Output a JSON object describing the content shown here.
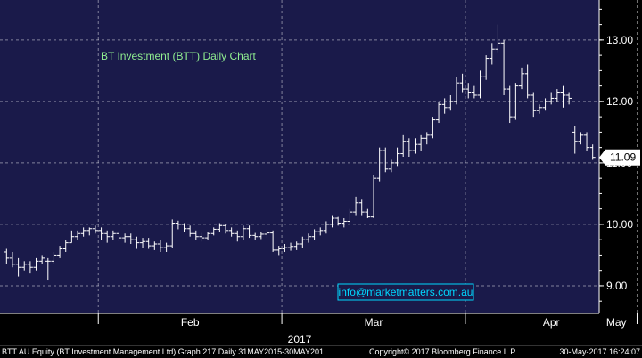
{
  "footer": {
    "left": "BTT AU Equity (BT Investment Management Ltd) Graph 217  Daily 31MAY2015-30MAY201",
    "middle": "Copyright© 2017 Bloomberg Finance L.P.",
    "right": "30-May-2017 16:24:07"
  },
  "colors": {
    "plot_bg": "#1a1a4a",
    "grid": "#ffffff",
    "bars": "#ffffff",
    "title": "#90ee90",
    "watermark": "#00d8ff"
  },
  "chart_data": {
    "type": "ohlc",
    "title": "BT Investment (BTT) Daily Chart",
    "watermark": "info@marketmatters.com.au",
    "year_label": "2017",
    "x_tick_labels": [
      "Feb",
      "Mar",
      "Apr",
      "May"
    ],
    "y_ticks": [
      9.0,
      10.0,
      11.0,
      12.0,
      13.0
    ],
    "y_tick_labels": [
      "9.00",
      "10.00",
      "11.00",
      "12.00",
      "13.00"
    ],
    "ylim": [
      8.55,
      13.65
    ],
    "last_price": 11.09,
    "last_price_label": "11.09",
    "grid": true,
    "month_start_index": {
      "Feb": 16,
      "Mar": 47,
      "Apr": 78,
      "May": 107
    },
    "bars": [
      [
        9.55,
        9.6,
        9.35,
        9.45
      ],
      [
        9.45,
        9.55,
        9.3,
        9.35
      ],
      [
        9.35,
        9.45,
        9.15,
        9.3
      ],
      [
        9.3,
        9.4,
        9.25,
        9.35
      ],
      [
        9.35,
        9.4,
        9.2,
        9.3
      ],
      [
        9.3,
        9.45,
        9.25,
        9.4
      ],
      [
        9.4,
        9.5,
        9.35,
        9.45
      ],
      [
        9.4,
        9.45,
        9.1,
        9.4
      ],
      [
        9.4,
        9.55,
        9.35,
        9.5
      ],
      [
        9.5,
        9.65,
        9.45,
        9.6
      ],
      [
        9.6,
        9.75,
        9.55,
        9.7
      ],
      [
        9.7,
        9.9,
        9.7,
        9.8
      ],
      [
        9.8,
        9.9,
        9.75,
        9.85
      ],
      [
        9.85,
        9.95,
        9.8,
        9.9
      ],
      [
        9.9,
        9.95,
        9.82,
        9.93
      ],
      [
        9.93,
        9.98,
        9.85,
        9.9
      ],
      [
        9.9,
        9.95,
        9.75,
        9.85
      ],
      [
        9.85,
        9.9,
        9.7,
        9.8
      ],
      [
        9.8,
        9.9,
        9.75,
        9.85
      ],
      [
        9.85,
        9.9,
        9.72,
        9.78
      ],
      [
        9.78,
        9.85,
        9.7,
        9.8
      ],
      [
        9.8,
        9.85,
        9.68,
        9.75
      ],
      [
        9.75,
        9.8,
        9.6,
        9.7
      ],
      [
        9.7,
        9.78,
        9.62,
        9.72
      ],
      [
        9.72,
        9.78,
        9.6,
        9.65
      ],
      [
        9.65,
        9.72,
        9.58,
        9.68
      ],
      [
        9.68,
        9.74,
        9.55,
        9.62
      ],
      [
        9.62,
        9.7,
        9.55,
        9.65
      ],
      [
        9.65,
        10.08,
        9.62,
        10.02
      ],
      [
        10.02,
        10.06,
        9.92,
        10.0
      ],
      [
        10.0,
        10.02,
        9.88,
        9.93
      ],
      [
        9.93,
        9.98,
        9.8,
        9.85
      ],
      [
        9.85,
        9.9,
        9.75,
        9.8
      ],
      [
        9.8,
        9.86,
        9.72,
        9.78
      ],
      [
        9.78,
        9.88,
        9.74,
        9.85
      ],
      [
        9.85,
        9.95,
        9.82,
        9.92
      ],
      [
        9.92,
        10.02,
        9.88,
        9.98
      ],
      [
        9.98,
        10.0,
        9.85,
        9.9
      ],
      [
        9.9,
        9.95,
        9.8,
        9.85
      ],
      [
        9.85,
        9.9,
        9.72,
        9.8
      ],
      [
        9.8,
        9.98,
        9.75,
        9.93
      ],
      [
        9.93,
        9.98,
        9.78,
        9.82
      ],
      [
        9.82,
        9.86,
        9.75,
        9.8
      ],
      [
        9.8,
        9.88,
        9.76,
        9.84
      ],
      [
        9.84,
        9.92,
        9.78,
        9.86
      ],
      [
        9.86,
        9.9,
        9.55,
        9.58
      ],
      [
        9.58,
        9.65,
        9.5,
        9.6
      ],
      [
        9.6,
        9.68,
        9.55,
        9.62
      ],
      [
        9.62,
        9.7,
        9.57,
        9.64
      ],
      [
        9.64,
        9.72,
        9.58,
        9.68
      ],
      [
        9.68,
        9.8,
        9.62,
        9.75
      ],
      [
        9.75,
        9.85,
        9.7,
        9.8
      ],
      [
        9.8,
        9.92,
        9.75,
        9.88
      ],
      [
        9.88,
        9.95,
        9.82,
        9.9
      ],
      [
        9.9,
        10.05,
        9.85,
        10.0
      ],
      [
        10.0,
        10.15,
        9.95,
        10.1
      ],
      [
        10.1,
        10.12,
        9.98,
        10.02
      ],
      [
        10.02,
        10.1,
        9.95,
        10.05
      ],
      [
        10.05,
        10.25,
        10.0,
        10.2
      ],
      [
        10.2,
        10.45,
        10.15,
        10.35
      ],
      [
        10.35,
        10.4,
        10.15,
        10.2
      ],
      [
        10.2,
        10.25,
        10.1,
        10.12
      ],
      [
        10.12,
        10.8,
        10.1,
        10.75
      ],
      [
        10.75,
        11.25,
        10.7,
        11.2
      ],
      [
        11.2,
        11.25,
        10.85,
        10.9
      ],
      [
        10.9,
        11.05,
        10.85,
        11.0
      ],
      [
        11.0,
        11.25,
        10.95,
        11.15
      ],
      [
        11.15,
        11.45,
        11.1,
        11.35
      ],
      [
        11.35,
        11.4,
        11.1,
        11.2
      ],
      [
        11.2,
        11.4,
        11.15,
        11.3
      ],
      [
        11.3,
        11.45,
        11.2,
        11.4
      ],
      [
        11.4,
        11.5,
        11.3,
        11.45
      ],
      [
        11.45,
        11.75,
        11.4,
        11.7
      ],
      [
        11.7,
        12.0,
        11.65,
        11.95
      ],
      [
        11.95,
        12.05,
        11.8,
        11.9
      ],
      [
        11.9,
        12.1,
        11.85,
        12.0
      ],
      [
        12.0,
        12.4,
        11.95,
        12.3
      ],
      [
        12.3,
        12.45,
        12.15,
        12.2
      ],
      [
        12.2,
        12.3,
        12.05,
        12.15
      ],
      [
        12.15,
        12.25,
        12.05,
        12.1
      ],
      [
        12.1,
        12.5,
        12.05,
        12.4
      ],
      [
        12.4,
        12.75,
        12.35,
        12.7
      ],
      [
        12.7,
        12.95,
        12.6,
        12.85
      ],
      [
        12.85,
        13.25,
        12.8,
        12.95
      ],
      [
        12.95,
        13.0,
        12.1,
        12.2
      ],
      [
        12.2,
        12.25,
        11.65,
        11.75
      ],
      [
        11.75,
        12.3,
        11.7,
        12.25
      ],
      [
        12.25,
        12.55,
        12.2,
        12.45
      ],
      [
        12.45,
        12.6,
        12.05,
        12.1
      ],
      [
        12.1,
        12.15,
        11.75,
        11.85
      ],
      [
        11.85,
        11.95,
        11.8,
        11.9
      ],
      [
        11.9,
        12.05,
        11.85,
        12.0
      ],
      [
        12.0,
        12.15,
        11.95,
        12.05
      ],
      [
        12.05,
        12.2,
        12.0,
        12.15
      ],
      [
        12.15,
        12.25,
        11.9,
        12.1
      ],
      [
        12.1,
        12.15,
        11.95,
        12.05
      ],
      [
        11.5,
        11.6,
        11.15,
        11.35
      ],
      [
        11.35,
        11.5,
        11.3,
        11.45
      ],
      [
        11.45,
        11.5,
        11.2,
        11.25
      ],
      [
        11.25,
        11.3,
        11.05,
        11.09
      ]
    ]
  }
}
